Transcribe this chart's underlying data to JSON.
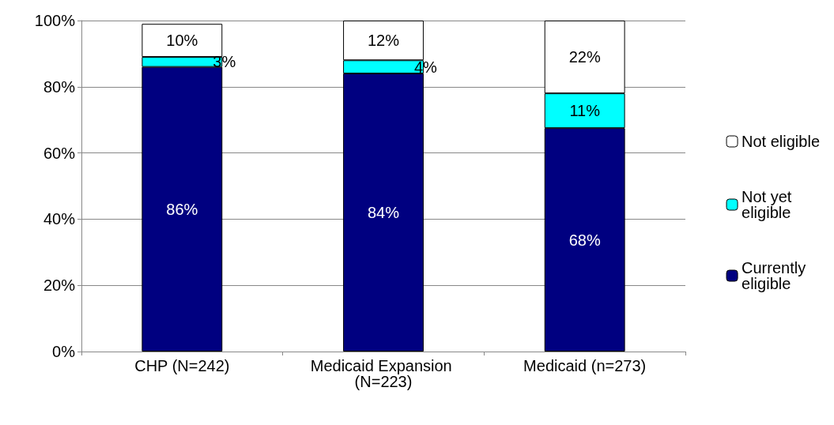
{
  "chart_data": {
    "type": "bar",
    "stacked": true,
    "categories": [
      "CHP (N=242)",
      "Medicaid Expansion (N=223)",
      "Medicaid (n=273)"
    ],
    "series": [
      {
        "name": "Currently eligible",
        "color": "#000080",
        "values": [
          86,
          84,
          67.5
        ],
        "value_labels": [
          "86%",
          "84%",
          "68%"
        ]
      },
      {
        "name": "Not yet eligible",
        "color": "#00ffff",
        "values": [
          3,
          4,
          10.5
        ],
        "value_labels": [
          "3%",
          "4%",
          "11%"
        ]
      },
      {
        "name": "Not eligible",
        "color": "#ffffff",
        "values": [
          10,
          12,
          22
        ],
        "value_labels": [
          "10%",
          "12%",
          "22%"
        ]
      }
    ],
    "ylim": [
      0,
      100
    ],
    "yticks": [
      {
        "value": 0,
        "label": "0%"
      },
      {
        "value": 20,
        "label": "20%"
      },
      {
        "value": 40,
        "label": "40%"
      },
      {
        "value": 60,
        "label": "60%"
      },
      {
        "value": 80,
        "label": "80%"
      },
      {
        "value": 100,
        "label": "100%"
      }
    ],
    "grid": "y",
    "legend": "right"
  }
}
